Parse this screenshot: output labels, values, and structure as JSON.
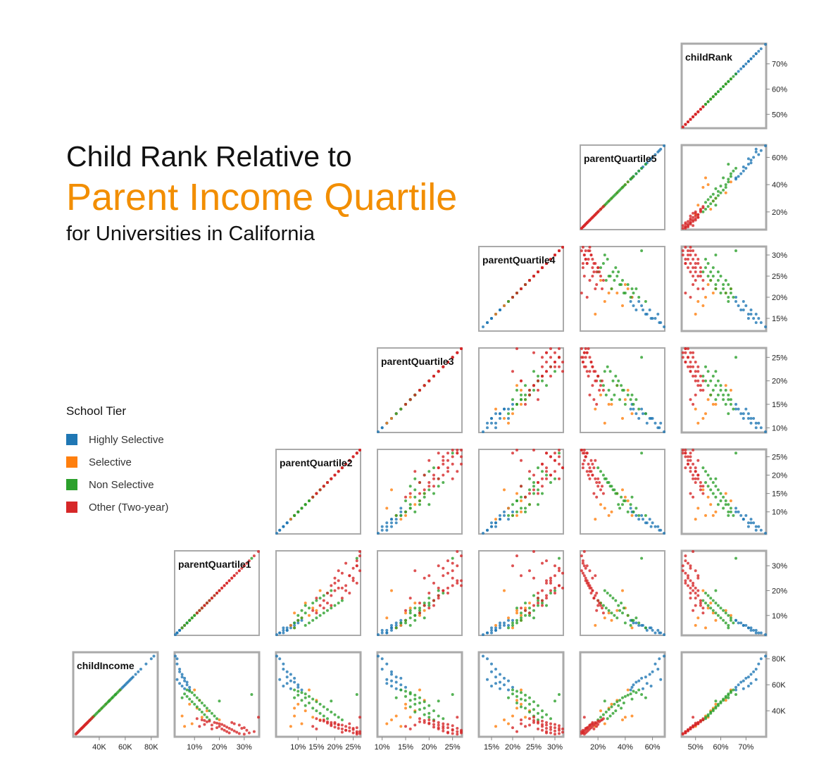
{
  "title": {
    "line1": "Child Rank Relative to",
    "line2": "Parent Income Quartile",
    "line3": "for Universities in California"
  },
  "legend": {
    "title": "School Tier",
    "items": [
      {
        "label": "Highly Selective",
        "color": "#1F77B4"
      },
      {
        "label": "Selective",
        "color": "#FF7F0E"
      },
      {
        "label": "Non Selective",
        "color": "#2CA02C"
      },
      {
        "label": "Other (Two-year)",
        "color": "#D62728"
      }
    ]
  },
  "chart_data": {
    "type": "scatter",
    "layout": "scatterplot-matrix (lower triangle)",
    "variables": [
      {
        "name": "childIncome",
        "range": [
          20000,
          85000
        ],
        "ticks": [
          40000,
          60000,
          80000
        ],
        "tick_labels": [
          "40K",
          "60K",
          "80K"
        ]
      },
      {
        "name": "parentQuartile1",
        "range": [
          0.02,
          0.36
        ],
        "ticks": [
          0.1,
          0.2,
          0.3
        ],
        "tick_labels": [
          "10%",
          "20%",
          "30%"
        ]
      },
      {
        "name": "parentQuartile2",
        "range": [
          0.04,
          0.27
        ],
        "ticks": [
          0.1,
          0.15,
          0.2,
          0.25
        ],
        "tick_labels": [
          "10%",
          "15%",
          "20%",
          "25%"
        ]
      },
      {
        "name": "parentQuartile3",
        "range": [
          0.09,
          0.27
        ],
        "ticks": [
          0.1,
          0.15,
          0.2,
          0.25
        ],
        "tick_labels": [
          "10%",
          "15%",
          "20%",
          "25%"
        ]
      },
      {
        "name": "parentQuartile4",
        "range": [
          0.12,
          0.32
        ],
        "ticks": [
          0.15,
          0.2,
          0.25,
          0.3
        ],
        "tick_labels": [
          "15%",
          "20%",
          "25%",
          "30%"
        ]
      },
      {
        "name": "parentQuartile5",
        "range": [
          0.07,
          0.69
        ],
        "ticks": [
          0.2,
          0.4,
          0.6
        ],
        "tick_labels": [
          "20%",
          "40%",
          "60%"
        ]
      },
      {
        "name": "childRank",
        "range": [
          0.445,
          0.78
        ],
        "ticks": [
          0.5,
          0.6,
          0.7
        ],
        "tick_labels": [
          "50%",
          "60%",
          "70%"
        ]
      }
    ],
    "series": [
      {
        "name": "Highly Selective",
        "color": "#1F77B4",
        "points": [
          [
            82000,
            0.02,
            0.04,
            0.09,
            0.13,
            0.69,
            0.78
          ],
          [
            80000,
            0.03,
            0.05,
            0.1,
            0.14,
            0.65,
            0.76
          ],
          [
            76000,
            0.03,
            0.06,
            0.11,
            0.15,
            0.62,
            0.75
          ],
          [
            72000,
            0.04,
            0.06,
            0.1,
            0.16,
            0.64,
            0.74
          ],
          [
            70000,
            0.04,
            0.07,
            0.12,
            0.15,
            0.6,
            0.73
          ],
          [
            68000,
            0.05,
            0.08,
            0.12,
            0.17,
            0.58,
            0.72
          ],
          [
            66000,
            0.05,
            0.07,
            0.13,
            0.16,
            0.55,
            0.71
          ],
          [
            65000,
            0.06,
            0.09,
            0.14,
            0.18,
            0.52,
            0.7
          ],
          [
            64000,
            0.03,
            0.05,
            0.11,
            0.14,
            0.66,
            0.74
          ],
          [
            63000,
            0.06,
            0.08,
            0.12,
            0.19,
            0.5,
            0.69
          ],
          [
            62000,
            0.07,
            0.09,
            0.13,
            0.17,
            0.48,
            0.68
          ],
          [
            61000,
            0.04,
            0.07,
            0.11,
            0.16,
            0.56,
            0.72
          ],
          [
            60000,
            0.07,
            0.1,
            0.14,
            0.18,
            0.46,
            0.67
          ],
          [
            59000,
            0.05,
            0.06,
            0.12,
            0.15,
            0.59,
            0.71
          ],
          [
            58000,
            0.08,
            0.1,
            0.15,
            0.2,
            0.45,
            0.66
          ],
          [
            57000,
            0.06,
            0.08,
            0.13,
            0.17,
            0.53,
            0.69
          ],
          [
            56000,
            0.08,
            0.11,
            0.14,
            0.19,
            0.44,
            0.66
          ]
        ]
      },
      {
        "name": "Selective",
        "color": "#FF7F0E",
        "points": [
          [
            56000,
            0.1,
            0.13,
            0.18,
            0.22,
            0.42,
            0.64
          ],
          [
            48000,
            0.12,
            0.15,
            0.19,
            0.21,
            0.34,
            0.62
          ],
          [
            45000,
            0.08,
            0.1,
            0.15,
            0.22,
            0.3,
            0.58
          ],
          [
            40000,
            0.15,
            0.12,
            0.17,
            0.24,
            0.22,
            0.56
          ],
          [
            36000,
            0.05,
            0.09,
            0.13,
            0.2,
            0.45,
            0.54
          ],
          [
            33000,
            0.2,
            0.16,
            0.12,
            0.18,
            0.38,
            0.53
          ],
          [
            30000,
            0.09,
            0.11,
            0.11,
            0.19,
            0.25,
            0.51
          ],
          [
            28000,
            0.06,
            0.08,
            0.14,
            0.16,
            0.18,
            0.5
          ],
          [
            35000,
            0.13,
            0.14,
            0.16,
            0.23,
            0.4,
            0.55
          ],
          [
            42000,
            0.11,
            0.09,
            0.15,
            0.21,
            0.28,
            0.57
          ]
        ]
      },
      {
        "name": "Non Selective",
        "color": "#2CA02C",
        "points": [
          [
            56000,
            0.07,
            0.09,
            0.14,
            0.2,
            0.5,
            0.65
          ],
          [
            55000,
            0.08,
            0.1,
            0.15,
            0.21,
            0.46,
            0.64
          ],
          [
            54000,
            0.09,
            0.11,
            0.16,
            0.22,
            0.48,
            0.64
          ],
          [
            53000,
            0.06,
            0.12,
            0.16,
            0.2,
            0.44,
            0.63
          ],
          [
            52000,
            0.1,
            0.1,
            0.17,
            0.23,
            0.42,
            0.63
          ],
          [
            51000,
            0.07,
            0.13,
            0.15,
            0.21,
            0.4,
            0.62
          ],
          [
            50000,
            0.11,
            0.12,
            0.18,
            0.24,
            0.38,
            0.62
          ],
          [
            49000,
            0.08,
            0.14,
            0.17,
            0.22,
            0.45,
            0.61
          ],
          [
            48000,
            0.12,
            0.11,
            0.16,
            0.23,
            0.36,
            0.61
          ],
          [
            47000,
            0.09,
            0.15,
            0.19,
            0.25,
            0.34,
            0.6
          ],
          [
            46000,
            0.13,
            0.13,
            0.18,
            0.21,
            0.39,
            0.6
          ],
          [
            45000,
            0.1,
            0.16,
            0.17,
            0.24,
            0.32,
            0.59
          ],
          [
            44000,
            0.14,
            0.12,
            0.2,
            0.26,
            0.35,
            0.59
          ],
          [
            43000,
            0.11,
            0.17,
            0.16,
            0.22,
            0.3,
            0.58
          ],
          [
            42000,
            0.15,
            0.14,
            0.19,
            0.23,
            0.37,
            0.58
          ],
          [
            41000,
            0.12,
            0.18,
            0.18,
            0.25,
            0.28,
            0.57
          ],
          [
            40000,
            0.16,
            0.15,
            0.21,
            0.27,
            0.33,
            0.57
          ],
          [
            39000,
            0.13,
            0.19,
            0.17,
            0.24,
            0.26,
            0.56
          ],
          [
            38000,
            0.17,
            0.16,
            0.2,
            0.26,
            0.31,
            0.56
          ],
          [
            37000,
            0.14,
            0.2,
            0.19,
            0.28,
            0.24,
            0.55
          ],
          [
            36000,
            0.18,
            0.17,
            0.22,
            0.25,
            0.29,
            0.55
          ],
          [
            35000,
            0.15,
            0.21,
            0.2,
            0.27,
            0.22,
            0.54
          ],
          [
            34000,
            0.19,
            0.18,
            0.23,
            0.29,
            0.27,
            0.54
          ],
          [
            33000,
            0.16,
            0.22,
            0.21,
            0.26,
            0.2,
            0.53
          ],
          [
            50000,
            0.05,
            0.09,
            0.13,
            0.19,
            0.55,
            0.63
          ],
          [
            47500,
            0.2,
            0.19,
            0.22,
            0.3,
            0.25,
            0.58
          ],
          [
            52500,
            0.33,
            0.26,
            0.25,
            0.31,
            0.52,
            0.66
          ]
        ]
      },
      {
        "name": "Other (Two-year)",
        "color": "#D62728",
        "points": [
          [
            32000,
            0.16,
            0.17,
            0.21,
            0.27,
            0.2,
            0.52
          ],
          [
            31000,
            0.18,
            0.19,
            0.22,
            0.28,
            0.18,
            0.51
          ],
          [
            30000,
            0.2,
            0.2,
            0.23,
            0.29,
            0.16,
            0.51
          ],
          [
            30500,
            0.19,
            0.18,
            0.2,
            0.26,
            0.19,
            0.5
          ],
          [
            29500,
            0.21,
            0.21,
            0.24,
            0.3,
            0.15,
            0.5
          ],
          [
            29000,
            0.17,
            0.22,
            0.22,
            0.28,
            0.17,
            0.5
          ],
          [
            28500,
            0.22,
            0.19,
            0.25,
            0.31,
            0.14,
            0.49
          ],
          [
            28000,
            0.2,
            0.23,
            0.23,
            0.27,
            0.16,
            0.49
          ],
          [
            27500,
            0.23,
            0.2,
            0.21,
            0.29,
            0.13,
            0.49
          ],
          [
            27000,
            0.19,
            0.24,
            0.24,
            0.3,
            0.15,
            0.48
          ],
          [
            26500,
            0.24,
            0.21,
            0.26,
            0.28,
            0.12,
            0.48
          ],
          [
            26000,
            0.21,
            0.22,
            0.22,
            0.32,
            0.14,
            0.48
          ],
          [
            25500,
            0.25,
            0.25,
            0.25,
            0.29,
            0.11,
            0.47
          ],
          [
            25000,
            0.22,
            0.23,
            0.27,
            0.31,
            0.13,
            0.47
          ],
          [
            24500,
            0.26,
            0.24,
            0.23,
            0.3,
            0.1,
            0.47
          ],
          [
            24000,
            0.23,
            0.26,
            0.26,
            0.28,
            0.12,
            0.46
          ],
          [
            23500,
            0.27,
            0.22,
            0.24,
            0.32,
            0.09,
            0.46
          ],
          [
            23000,
            0.24,
            0.25,
            0.27,
            0.29,
            0.11,
            0.46
          ],
          [
            22500,
            0.28,
            0.27,
            0.25,
            0.31,
            0.08,
            0.45
          ],
          [
            22000,
            0.3,
            0.26,
            0.26,
            0.3,
            0.1,
            0.45
          ],
          [
            32500,
            0.14,
            0.16,
            0.19,
            0.25,
            0.22,
            0.52
          ],
          [
            31500,
            0.15,
            0.18,
            0.18,
            0.26,
            0.21,
            0.52
          ],
          [
            30000,
            0.26,
            0.24,
            0.2,
            0.22,
            0.18,
            0.51
          ],
          [
            29000,
            0.28,
            0.21,
            0.17,
            0.24,
            0.14,
            0.5
          ],
          [
            28000,
            0.12,
            0.14,
            0.15,
            0.23,
            0.19,
            0.49
          ],
          [
            27000,
            0.3,
            0.26,
            0.22,
            0.2,
            0.12,
            0.48
          ],
          [
            26000,
            0.17,
            0.15,
            0.16,
            0.26,
            0.17,
            0.48
          ],
          [
            25000,
            0.31,
            0.23,
            0.25,
            0.27,
            0.09,
            0.47
          ],
          [
            33000,
            0.13,
            0.17,
            0.2,
            0.22,
            0.23,
            0.53
          ],
          [
            34000,
            0.11,
            0.15,
            0.18,
            0.24,
            0.24,
            0.53
          ],
          [
            24000,
            0.34,
            0.27,
            0.27,
            0.21,
            0.08,
            0.46
          ],
          [
            31000,
            0.25,
            0.2,
            0.19,
            0.25,
            0.16,
            0.51
          ],
          [
            29500,
            0.14,
            0.19,
            0.21,
            0.27,
            0.2,
            0.5
          ],
          [
            26500,
            0.29,
            0.25,
            0.23,
            0.31,
            0.11,
            0.48
          ],
          [
            23000,
            0.32,
            0.26,
            0.24,
            0.28,
            0.09,
            0.46
          ],
          [
            35000,
            0.36,
            0.27,
            0.26,
            0.25,
            0.1,
            0.49
          ]
        ]
      }
    ]
  }
}
